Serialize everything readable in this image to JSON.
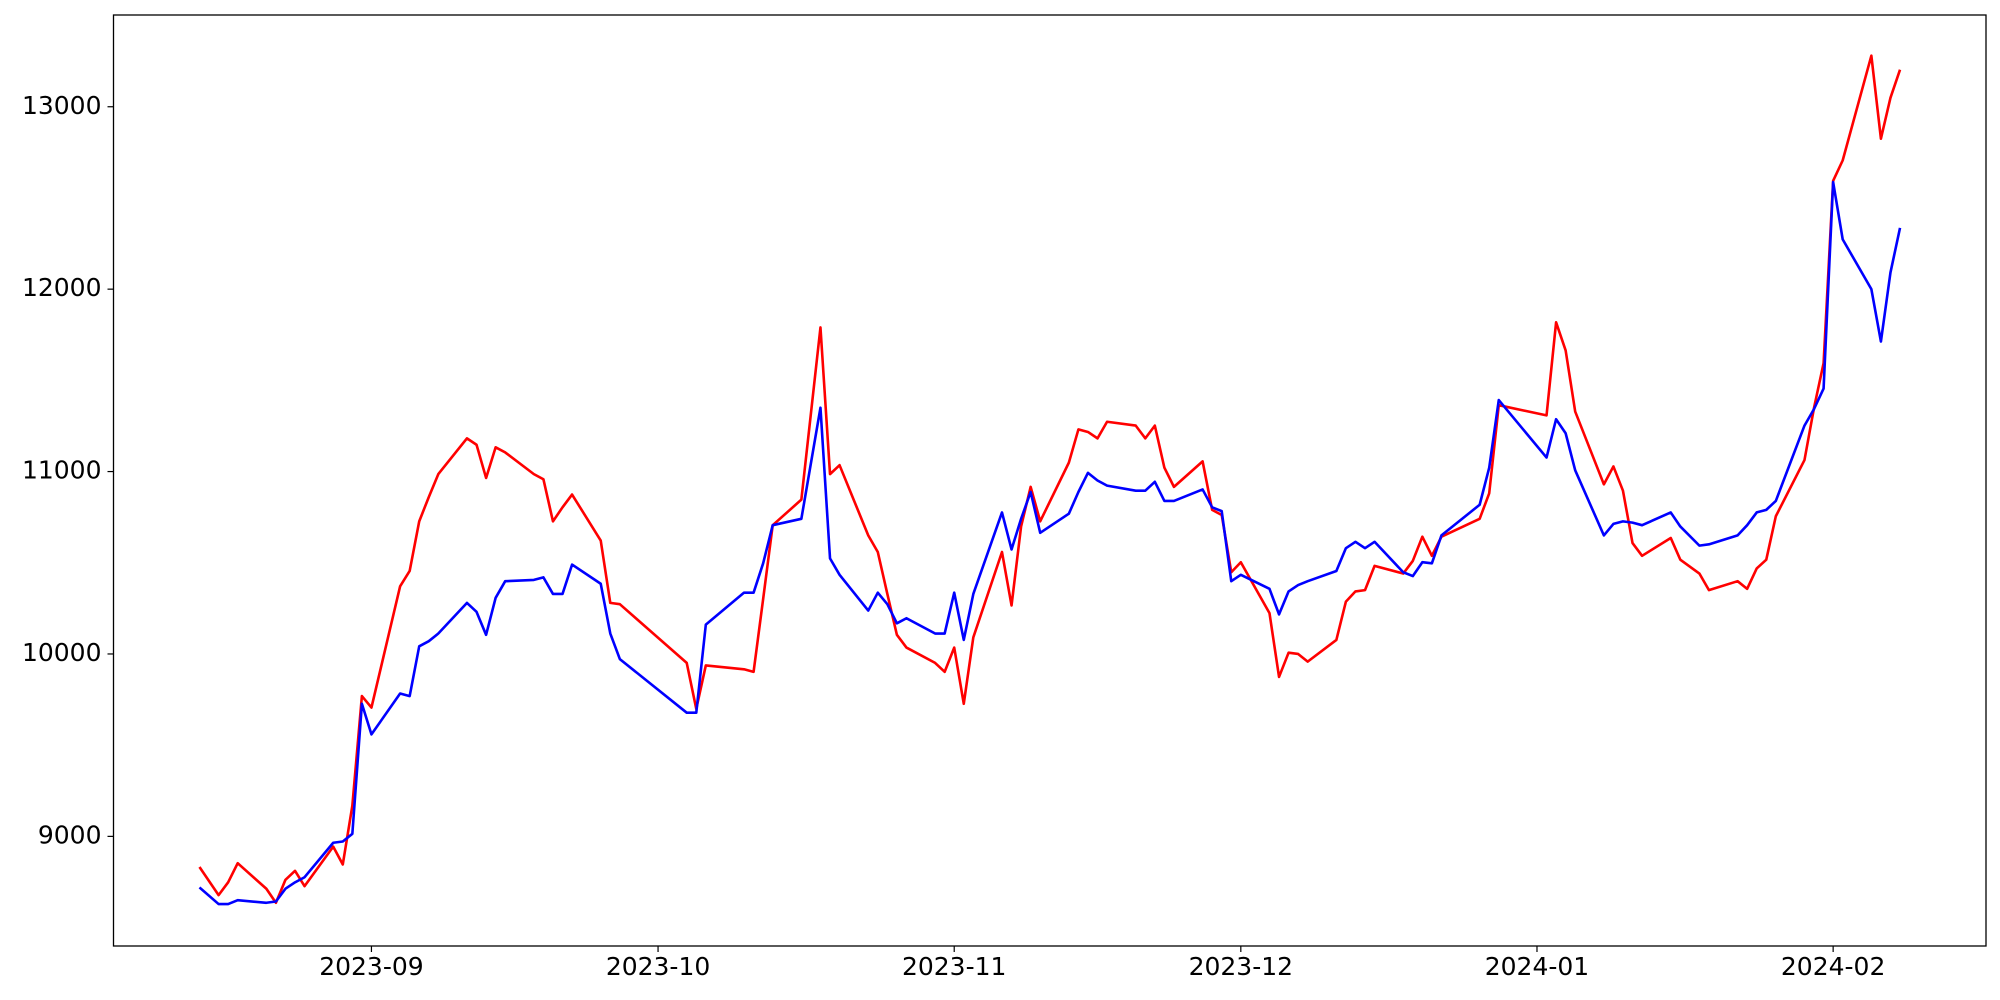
{
  "chart_data": {
    "type": "line",
    "x": [
      "2023-08-14",
      "2023-08-16",
      "2023-08-17",
      "2023-08-18",
      "2023-08-21",
      "2023-08-22",
      "2023-08-23",
      "2023-08-24",
      "2023-08-25",
      "2023-08-28",
      "2023-08-29",
      "2023-08-30",
      "2023-08-31",
      "2023-09-01",
      "2023-09-04",
      "2023-09-05",
      "2023-09-06",
      "2023-09-07",
      "2023-09-08",
      "2023-09-11",
      "2023-09-12",
      "2023-09-13",
      "2023-09-14",
      "2023-09-15",
      "2023-09-18",
      "2023-09-19",
      "2023-09-20",
      "2023-09-21",
      "2023-09-22",
      "2023-09-25",
      "2023-09-26",
      "2023-09-27",
      "2023-10-04",
      "2023-10-05",
      "2023-10-06",
      "2023-10-10",
      "2023-10-11",
      "2023-10-12",
      "2023-10-13",
      "2023-10-16",
      "2023-10-18",
      "2023-10-19",
      "2023-10-20",
      "2023-10-23",
      "2023-10-24",
      "2023-10-25",
      "2023-10-26",
      "2023-10-27",
      "2023-10-30",
      "2023-10-31",
      "2023-11-01",
      "2023-11-02",
      "2023-11-03",
      "2023-11-06",
      "2023-11-07",
      "2023-11-08",
      "2023-11-09",
      "2023-11-10",
      "2023-11-13",
      "2023-11-14",
      "2023-11-15",
      "2023-11-16",
      "2023-11-17",
      "2023-11-20",
      "2023-11-21",
      "2023-11-22",
      "2023-11-23",
      "2023-11-24",
      "2023-11-27",
      "2023-11-28",
      "2023-11-29",
      "2023-11-30",
      "2023-12-01",
      "2023-12-04",
      "2023-12-05",
      "2023-12-06",
      "2023-12-07",
      "2023-12-08",
      "2023-12-11",
      "2023-12-12",
      "2023-12-13",
      "2023-12-14",
      "2023-12-15",
      "2023-12-18",
      "2023-12-19",
      "2023-12-20",
      "2023-12-21",
      "2023-12-22",
      "2023-12-26",
      "2023-12-27",
      "2023-12-28",
      "2024-01-02",
      "2024-01-03",
      "2024-01-04",
      "2024-01-05",
      "2024-01-08",
      "2024-01-09",
      "2024-01-10",
      "2024-01-11",
      "2024-01-12",
      "2024-01-15",
      "2024-01-16",
      "2024-01-18",
      "2024-01-19",
      "2024-01-22",
      "2024-01-23",
      "2024-01-24",
      "2024-01-25",
      "2024-01-26",
      "2024-01-29",
      "2024-01-30",
      "2024-01-31",
      "2024-02-01",
      "2024-02-02",
      "2024-02-05",
      "2024-02-06",
      "2024-02-07",
      "2024-02-08"
    ],
    "series": [
      {
        "color": "#ff0000",
        "values": [
          8832,
          8678,
          8748,
          8853,
          8713,
          8636,
          8762,
          8811,
          8727,
          8944,
          8846,
          9168,
          9769,
          9706,
          10371,
          10455,
          10727,
          10860,
          10986,
          11182,
          11147,
          10965,
          11133,
          11105,
          10986,
          10958,
          10727,
          10804,
          10874,
          10622,
          10280,
          10273,
          9951,
          9699,
          9937,
          9916,
          9902,
          10301,
          10706,
          10846,
          11790,
          10986,
          11035,
          10650,
          10559,
          10329,
          10105,
          10035,
          9951,
          9902,
          10035,
          9727,
          10091,
          10559,
          10266,
          10699,
          10916,
          10727,
          11049,
          11231,
          11217,
          11182,
          11273,
          11252,
          11182,
          11252,
          11021,
          10916,
          11056,
          10790,
          10762,
          10448,
          10503,
          10224,
          9874,
          10007,
          10000,
          9958,
          10077,
          10287,
          10343,
          10350,
          10483,
          10441,
          10510,
          10643,
          10538,
          10643,
          10741,
          10881,
          11364,
          11308,
          11818,
          11664,
          11329,
          10930,
          11028,
          10895,
          10608,
          10538,
          10636,
          10517,
          10441,
          10350,
          10399,
          10357,
          10469,
          10517,
          10755,
          11063,
          11350,
          11594,
          12594,
          12706,
          13280,
          12825,
          13049,
          13203
        ]
      },
      {
        "color": "#0000ff",
        "values": [
          8720,
          8629,
          8629,
          8650,
          8636,
          8643,
          8713,
          8748,
          8776,
          8965,
          8972,
          9014,
          9727,
          9559,
          9783,
          9769,
          10042,
          10070,
          10112,
          10280,
          10231,
          10105,
          10308,
          10399,
          10406,
          10420,
          10329,
          10329,
          10490,
          10385,
          10112,
          9972,
          9678,
          9678,
          10161,
          10336,
          10336,
          10497,
          10706,
          10741,
          11350,
          10524,
          10434,
          10238,
          10336,
          10273,
          10168,
          10196,
          10112,
          10112,
          10336,
          10077,
          10329,
          10776,
          10573,
          10741,
          10888,
          10664,
          10769,
          10888,
          10993,
          10951,
          10923,
          10895,
          10895,
          10944,
          10839,
          10839,
          10902,
          10804,
          10783,
          10399,
          10434,
          10357,
          10217,
          10343,
          10378,
          10399,
          10455,
          10580,
          10615,
          10580,
          10615,
          10448,
          10427,
          10503,
          10497,
          10650,
          10818,
          11021,
          11392,
          11077,
          11287,
          11210,
          11007,
          10650,
          10713,
          10727,
          10720,
          10706,
          10776,
          10699,
          10594,
          10601,
          10650,
          10706,
          10776,
          10790,
          10839,
          11252,
          11343,
          11455,
          12587,
          12273,
          12000,
          11713,
          12091,
          12336
        ]
      }
    ],
    "xlim": [
      "2023-08-05",
      "2024-02-17"
    ],
    "xticks": [
      {
        "value": "2023-09-01",
        "label": "2023-09"
      },
      {
        "value": "2023-10-01",
        "label": "2023-10"
      },
      {
        "value": "2023-11-01",
        "label": "2023-11"
      },
      {
        "value": "2023-12-01",
        "label": "2023-12"
      },
      {
        "value": "2024-01-01",
        "label": "2024-01"
      },
      {
        "value": "2024-02-01",
        "label": "2024-02"
      }
    ],
    "ylim": [
      8399,
      13503
    ],
    "yticks": [
      9000,
      10000,
      11000,
      12000,
      13000
    ],
    "grid": false
  }
}
